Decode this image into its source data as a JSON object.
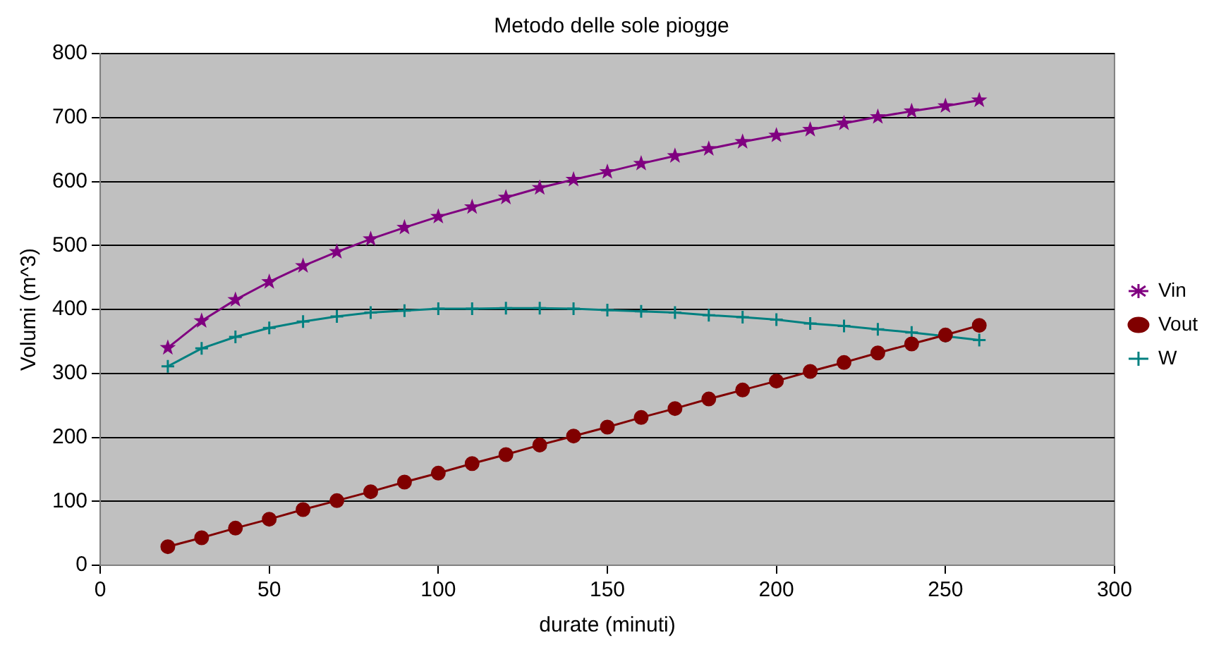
{
  "chart_data": {
    "type": "line",
    "title": "Metodo delle sole piogge",
    "xlabel": "durate (minuti)",
    "ylabel": "Volumi (m^3)",
    "x": [
      20,
      30,
      40,
      50,
      60,
      70,
      80,
      90,
      100,
      110,
      120,
      130,
      140,
      150,
      160,
      170,
      180,
      190,
      200,
      210,
      220,
      230,
      240,
      250,
      260
    ],
    "series": [
      {
        "name": "Vin",
        "color": "#800080",
        "marker": "star",
        "values": [
          340,
          382,
          415,
          443,
          468,
          490,
          510,
          528,
          545,
          560,
          575,
          590,
          603,
          615,
          628,
          640,
          651,
          662,
          672,
          681,
          691,
          701,
          710,
          718,
          727
        ]
      },
      {
        "name": "Vout",
        "color": "#800000",
        "marker": "circle",
        "values": [
          29,
          43,
          58,
          72,
          87,
          101,
          115,
          130,
          144,
          159,
          173,
          188,
          202,
          216,
          231,
          245,
          260,
          274,
          288,
          303,
          317,
          332,
          346,
          360,
          375
        ]
      },
      {
        "name": "W",
        "color": "#008080",
        "marker": "cross",
        "values": [
          311,
          339,
          357,
          371,
          381,
          389,
          395,
          398,
          401,
          401,
          402,
          402,
          401,
          399,
          397,
          395,
          391,
          388,
          384,
          378,
          374,
          369,
          364,
          358,
          352
        ]
      }
    ],
    "xlim": [
      0,
      300
    ],
    "xticks": [
      0,
      50,
      100,
      150,
      200,
      250,
      300
    ],
    "ylim": [
      0,
      800
    ],
    "yticks": [
      0,
      100,
      200,
      300,
      400,
      500,
      600,
      700,
      800
    ],
    "grid": "y",
    "legend": "right",
    "line_style": "solid"
  }
}
